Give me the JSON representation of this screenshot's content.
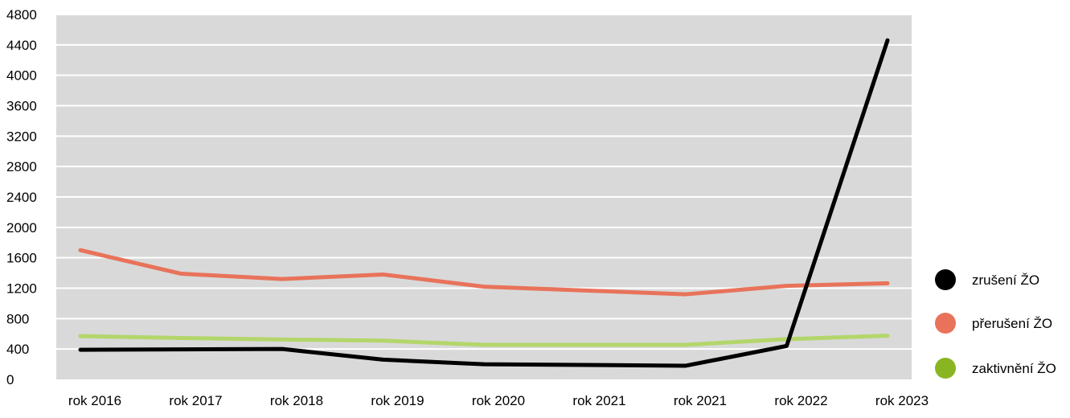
{
  "chart_data": {
    "type": "line",
    "title": "",
    "xlabel": "",
    "ylabel": "",
    "ylim": [
      0,
      4800
    ],
    "yticks": [
      0,
      400,
      800,
      1200,
      1600,
      2000,
      2400,
      2800,
      3200,
      3600,
      4000,
      4400,
      4800
    ],
    "categories": [
      "rok 2016",
      "rok 2017",
      "rok 2018",
      "rok 2019",
      "rok 2020",
      "rok 2021",
      "rok 2021",
      "rok 2022",
      "rok 2023"
    ],
    "grid": true,
    "legend_position": "right",
    "plot_background": "#d9d9d9",
    "series": [
      {
        "name": "zrušení ŽO",
        "color": "#000000",
        "values": [
          390,
          395,
          400,
          260,
          200,
          190,
          180,
          440,
          4460
        ]
      },
      {
        "name": "přerušení ŽO",
        "color": "#e8735a",
        "values": [
          1700,
          1390,
          1320,
          1380,
          1220,
          1170,
          1120,
          1230,
          1265
        ]
      },
      {
        "name": "zaktivnění ŽO",
        "color": "#b3d66b",
        "values": [
          570,
          545,
          525,
          510,
          455,
          455,
          455,
          530,
          575
        ]
      }
    ],
    "legend_marker_colors": [
      "#000000",
      "#e8735a",
      "#8ab523"
    ]
  }
}
